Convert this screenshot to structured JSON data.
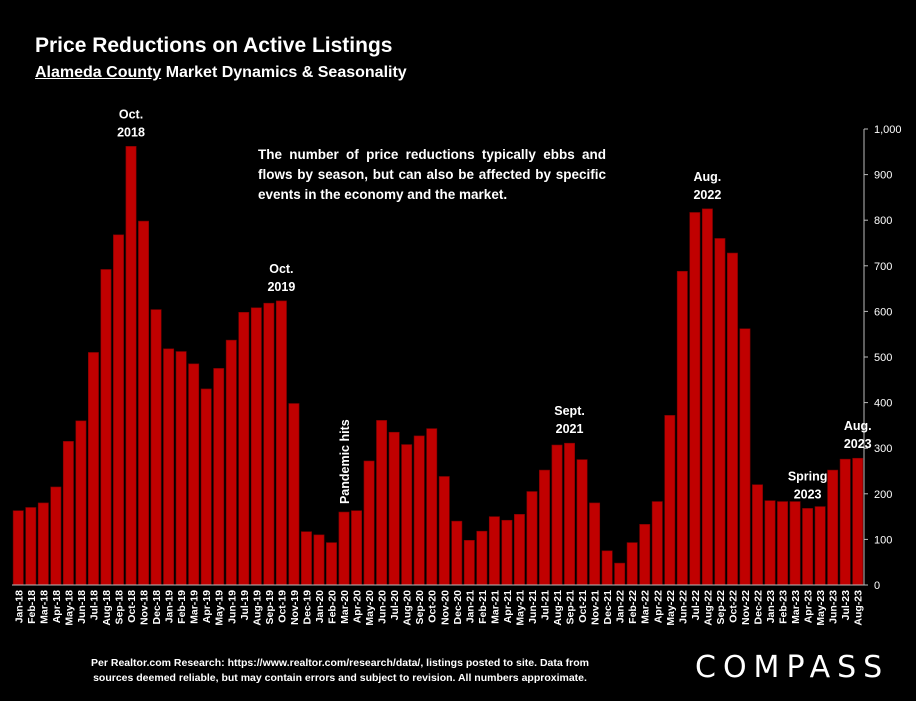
{
  "title": "Price Reductions on Active Listings",
  "subtitle_county": "Alameda County",
  "subtitle_rest": " Market Dynamics & Seasonality",
  "note": "The number of price reductions typically ebbs and flows by season, but can also be affected by specific events in the economy and the market.",
  "footer_line1": "Per Realtor.com Research:  https://www.realtor.com/research/data/, listings posted to site. Data from",
  "footer_line2": "sources deemed reliable, but may contain errors and subject to revision. All numbers approximate.",
  "logo": "COMPASS",
  "colors": {
    "bar": "#c00000",
    "bar_edge": "#7a0000",
    "background": "#000000",
    "text": "#ffffff"
  },
  "chart_data": {
    "type": "bar",
    "categories": [
      "Jan-18",
      "Feb-18",
      "Mar-18",
      "Apr-18",
      "May-18",
      "Jun-18",
      "Jul-18",
      "Aug-18",
      "Sep-18",
      "Oct-18",
      "Nov-18",
      "Dec-18",
      "Jan-19",
      "Feb-19",
      "Mar-19",
      "Apr-19",
      "May-19",
      "Jun-19",
      "Jul-19",
      "Aug-19",
      "Sep-19",
      "Oct-19",
      "Nov-19",
      "Dec-19",
      "Jan-20",
      "Feb-20",
      "Mar-20",
      "Apr-20",
      "May-20",
      "Jun-20",
      "Jul-20",
      "Aug-20",
      "Sep-20",
      "Oct-20",
      "Nov-20",
      "Dec-20",
      "Jan-21",
      "Feb-21",
      "Mar-21",
      "Apr-21",
      "May-21",
      "Jun-21",
      "Jul-21",
      "Aug-21",
      "Sep-21",
      "Oct-21",
      "Nov-21",
      "Dec-21",
      "Jan-22",
      "Feb-22",
      "Mar-22",
      "Apr-22",
      "May-22",
      "Jun-22",
      "Jul-22",
      "Aug-22",
      "Sep-22",
      "Oct-22",
      "Nov-22",
      "Dec-22",
      "Jan-23",
      "Feb-23",
      "Mar-23",
      "Apr-23",
      "May-23",
      "Jun-23",
      "Jul-23",
      "Aug-23"
    ],
    "x_tick_labels": [
      "Jan-18",
      "Feb-18",
      "Mar-18",
      "Apr-18",
      "May-18",
      "Jun-18",
      "Jul-18",
      "Aug-18",
      "Sep-18",
      "Oct-18",
      "Nov-18",
      "Dec-18",
      "Jan-19",
      "Feb-19",
      "Mar-19",
      "Apr-19",
      "May-19",
      "Jun-19",
      "Jul-19",
      "Aug-19",
      "Sep-19",
      "Oct-19",
      "Nov-19",
      "Dec-19",
      "Jan-20",
      "Feb-20",
      "Mar-20",
      "Apr-20",
      "May-20",
      "Jun-20",
      "Jul-20",
      "Aug-20",
      "Sep-20",
      "Oct-20",
      "Nov-20",
      "Dec-20",
      "Jan-21",
      "Feb-21",
      "Mar-21",
      "Apr-21",
      "May-21",
      "Jun-21",
      "Jul-21",
      "Aug-21",
      "Sep-21",
      "Oct-21",
      "Nov-21",
      "Dec-21",
      "Jan-22",
      "Feb-22",
      "Mar-22",
      "Apr-22",
      "May-22",
      "Jun-22",
      "Jul-22",
      "Aug-22",
      "Sep-22",
      "Oct-22",
      "Nov-22",
      "Dec-22",
      "Jan-23",
      "Feb-23",
      "Mar-23",
      "Apr-23",
      "May-23",
      "Jun-23",
      "Jul-23",
      "Aug-23"
    ],
    "values": [
      163,
      170,
      180,
      215,
      315,
      360,
      510,
      692,
      768,
      962,
      798,
      604,
      518,
      512,
      485,
      430,
      475,
      537,
      598,
      608,
      618,
      623,
      398,
      117,
      110,
      93,
      160,
      163,
      272,
      361,
      335,
      308,
      327,
      343,
      238,
      140,
      98,
      118,
      150,
      142,
      155,
      205,
      252,
      307,
      311,
      275,
      180,
      75,
      48,
      93,
      133,
      183,
      372,
      688,
      817,
      825,
      760,
      728,
      562,
      220,
      185,
      183,
      183,
      168,
      172,
      252,
      276,
      278
    ],
    "ylim": [
      0,
      1000
    ],
    "y_ticks": [
      "0",
      "100",
      "200",
      "300",
      "400",
      "500",
      "600",
      "700",
      "800",
      "900",
      "1,000"
    ],
    "y_axis_side": "right",
    "grid": false,
    "annotations": [
      {
        "lines": [
          "Oct.",
          "2018"
        ],
        "at": "Oct-18"
      },
      {
        "lines": [
          "Oct.",
          "2019"
        ],
        "at": "Oct-19"
      },
      {
        "lines": [
          "Pandemic hits"
        ],
        "at": "Mar-20",
        "rotated": true
      },
      {
        "lines": [
          "Sept.",
          "2021"
        ],
        "at": "Sep-21"
      },
      {
        "lines": [
          "Aug.",
          "2022"
        ],
        "at": "Aug-22"
      },
      {
        "lines": [
          "Spring",
          "2023"
        ],
        "at": "Apr-23"
      },
      {
        "lines": [
          "Aug.",
          "2023"
        ],
        "at": "Aug-23"
      }
    ]
  }
}
